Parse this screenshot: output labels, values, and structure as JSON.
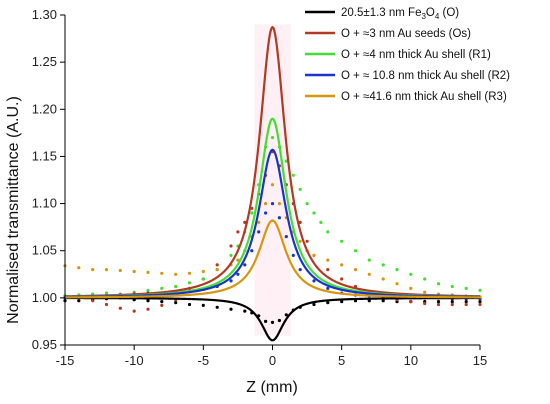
{
  "chart_data": {
    "type": "line",
    "xlabel": "Z (mm)",
    "ylabel": "Normalised transmittance (A.U.)",
    "xlim": [
      -15,
      15
    ],
    "ylim": [
      0.95,
      1.3
    ],
    "xticks": [
      "-15",
      "-10",
      "-5",
      "0",
      "5",
      "10",
      "15"
    ],
    "yticks": [
      "0.95",
      "1.00",
      "1.05",
      "1.10",
      "1.15",
      "1.20",
      "1.25",
      "1.30"
    ],
    "grid": false,
    "legend_position": "top-right",
    "legend": [
      {
        "text_main": "20.5±1.3 nm Fe",
        "sub1": "3",
        "mid": "O",
        "sub2": "4",
        "tail": " (O)",
        "color": "#000000"
      },
      {
        "text_main": "O + ≈3 nm Au seeds (Os)",
        "color": "#b33a22"
      },
      {
        "text_main": "O + ≈4 nm thick Au shell (R1)",
        "color": "#44dd33"
      },
      {
        "text_main": "O + ≈ 10.8 nm thick Au shell (R2)",
        "color": "#1a33cc"
      },
      {
        "text_main": "O + ≈41.6 nm thick Au shell (R3)",
        "color": "#d8960f"
      }
    ],
    "series": [
      {
        "type": "lorentzian",
        "color": "#000000",
        "amplitude": -0.045,
        "width": 1.0,
        "baseline": 1.0
      },
      {
        "type": "lorentzian",
        "color": "#b33a22",
        "amplitude": 0.287,
        "width": 1.15,
        "baseline": 1.0
      },
      {
        "type": "lorentzian",
        "color": "#44dd33",
        "amplitude": 0.19,
        "width": 1.2,
        "baseline": 1.0
      },
      {
        "type": "lorentzian",
        "color": "#1a33cc",
        "amplitude": 0.157,
        "width": 1.2,
        "baseline": 1.0
      },
      {
        "type": "lorentzian",
        "color": "#d8960f",
        "amplitude": 0.082,
        "width": 1.2,
        "baseline": 1.0
      }
    ],
    "scatter_series": [
      {
        "color": "#000000",
        "points": [
          [
            -15,
            0.997
          ],
          [
            -14,
            0.997
          ],
          [
            -13,
            0.998
          ],
          [
            -12,
            0.999
          ],
          [
            -11,
            1.0
          ],
          [
            -10,
            0.998
          ],
          [
            -9,
            0.997
          ],
          [
            -8,
            0.996
          ],
          [
            -7,
            0.995
          ],
          [
            -6,
            0.993
          ],
          [
            -5,
            0.992
          ],
          [
            -4,
            0.99
          ],
          [
            -3,
            0.988
          ],
          [
            -2,
            0.986
          ],
          [
            -1.5,
            0.984
          ],
          [
            -1,
            0.981
          ],
          [
            -0.5,
            0.975
          ],
          [
            0,
            0.974
          ],
          [
            0.5,
            0.976
          ],
          [
            1,
            0.982
          ],
          [
            1.5,
            0.987
          ],
          [
            2,
            0.99
          ],
          [
            3,
            0.993
          ],
          [
            4,
            0.995
          ],
          [
            5,
            0.996
          ],
          [
            6,
            0.997
          ],
          [
            7,
            0.997
          ],
          [
            8,
            0.997
          ],
          [
            9,
            0.996
          ],
          [
            10,
            0.996
          ],
          [
            11,
            0.996
          ],
          [
            12,
            0.996
          ],
          [
            13,
            0.996
          ],
          [
            14,
            0.996
          ],
          [
            15,
            0.996
          ]
        ]
      },
      {
        "color": "#b33a22",
        "points": [
          [
            -15,
            1.002
          ],
          [
            -14,
            1.0
          ],
          [
            -13,
            0.997
          ],
          [
            -12,
            0.993
          ],
          [
            -11,
            0.989
          ],
          [
            -10,
            0.986
          ],
          [
            -9,
            0.988
          ],
          [
            -8,
            0.992
          ],
          [
            -7,
            0.998
          ],
          [
            -6,
            1.01
          ],
          [
            -5,
            1.02
          ],
          [
            -4,
            1.035
          ],
          [
            -3,
            1.055
          ],
          [
            -2.5,
            1.07
          ],
          [
            -2,
            1.08
          ],
          [
            -1.5,
            1.095
          ],
          [
            -1,
            1.11
          ],
          [
            -0.5,
            1.13
          ],
          [
            0,
            1.155
          ],
          [
            0.5,
            1.14
          ],
          [
            1,
            1.12
          ],
          [
            1.5,
            1.1
          ],
          [
            2,
            1.08
          ],
          [
            2.5,
            1.06
          ],
          [
            3,
            1.045
          ],
          [
            4,
            1.03
          ],
          [
            5,
            1.02
          ],
          [
            6,
            1.012
          ],
          [
            7,
            1.006
          ],
          [
            8,
            1.002
          ],
          [
            9,
            0.998
          ],
          [
            10,
            0.996
          ],
          [
            11,
            0.994
          ],
          [
            12,
            0.993
          ],
          [
            13,
            0.993
          ],
          [
            14,
            0.993
          ],
          [
            15,
            0.993
          ]
        ]
      },
      {
        "color": "#44dd33",
        "points": [
          [
            -15,
            1.002
          ],
          [
            -14,
            1.003
          ],
          [
            -13,
            1.004
          ],
          [
            -12,
            1.005
          ],
          [
            -11,
            1.004
          ],
          [
            -10,
            1.006
          ],
          [
            -9,
            1.008
          ],
          [
            -8,
            1.01
          ],
          [
            -7,
            1.012
          ],
          [
            -6,
            1.016
          ],
          [
            -5,
            1.02
          ],
          [
            -4,
            1.03
          ],
          [
            -3,
            1.045
          ],
          [
            -2.5,
            1.055
          ],
          [
            -2,
            1.07
          ],
          [
            -1.5,
            1.09
          ],
          [
            -1,
            1.12
          ],
          [
            -0.5,
            1.16
          ],
          [
            0,
            1.17
          ],
          [
            0.5,
            1.16
          ],
          [
            1,
            1.145
          ],
          [
            1.5,
            1.13
          ],
          [
            2,
            1.115
          ],
          [
            2.5,
            1.1
          ],
          [
            3,
            1.09
          ],
          [
            3.5,
            1.08
          ],
          [
            4,
            1.07
          ],
          [
            5,
            1.06
          ],
          [
            6,
            1.05
          ],
          [
            7,
            1.04
          ],
          [
            8,
            1.035
          ],
          [
            9,
            1.03
          ],
          [
            10,
            1.025
          ],
          [
            11,
            1.02
          ],
          [
            12,
            1.015
          ],
          [
            13,
            1.012
          ],
          [
            14,
            1.01
          ],
          [
            15,
            1.008
          ]
        ]
      },
      {
        "color": "#1a33cc",
        "points": [
          [
            -15,
            1.0
          ],
          [
            -14,
            1.001
          ],
          [
            -13,
            1.0
          ],
          [
            -12,
            1.001
          ],
          [
            -11,
            1.003
          ],
          [
            -10,
            1.004
          ],
          [
            -9,
            1.005
          ],
          [
            -8,
            1.005
          ],
          [
            -7,
            1.006
          ],
          [
            -6,
            1.007
          ],
          [
            -5,
            1.009
          ],
          [
            -4,
            1.012
          ],
          [
            -3,
            1.018
          ],
          [
            -2.5,
            1.025
          ],
          [
            -2,
            1.035
          ],
          [
            -1.5,
            1.05
          ],
          [
            -1,
            1.07
          ],
          [
            -0.5,
            1.09
          ],
          [
            0,
            1.1
          ],
          [
            0.5,
            1.085
          ],
          [
            1,
            1.065
          ],
          [
            1.5,
            1.045
          ],
          [
            2,
            1.03
          ],
          [
            3,
            1.018
          ],
          [
            4,
            1.01
          ],
          [
            5,
            1.005
          ],
          [
            6,
            1.003
          ],
          [
            7,
            1.002
          ],
          [
            8,
            1.002
          ],
          [
            9,
            1.001
          ],
          [
            10,
            1.0
          ],
          [
            11,
            1.0
          ],
          [
            12,
            1.0
          ],
          [
            13,
            0.999
          ],
          [
            14,
            0.999
          ],
          [
            15,
            0.999
          ]
        ]
      },
      {
        "color": "#d8960f",
        "points": [
          [
            -15,
            1.034
          ],
          [
            -14,
            1.032
          ],
          [
            -13,
            1.03
          ],
          [
            -12,
            1.03
          ],
          [
            -11,
            1.029
          ],
          [
            -10,
            1.028
          ],
          [
            -9,
            1.027
          ],
          [
            -8,
            1.026
          ],
          [
            -7,
            1.025
          ],
          [
            -6,
            1.026
          ],
          [
            -5,
            1.028
          ],
          [
            -4,
            1.03
          ],
          [
            -3,
            1.035
          ],
          [
            -2.5,
            1.04
          ],
          [
            -2,
            1.05
          ],
          [
            -1.5,
            1.065
          ],
          [
            -1,
            1.08
          ],
          [
            -0.5,
            1.1
          ],
          [
            0,
            1.12
          ],
          [
            0.5,
            1.1
          ],
          [
            1,
            1.085
          ],
          [
            1.5,
            1.07
          ],
          [
            2,
            1.06
          ],
          [
            2.5,
            1.05
          ],
          [
            3,
            1.045
          ],
          [
            4,
            1.04
          ],
          [
            5,
            1.035
          ],
          [
            6,
            1.03
          ],
          [
            7,
            1.025
          ],
          [
            8,
            1.02
          ],
          [
            9,
            1.015
          ],
          [
            10,
            1.01
          ],
          [
            11,
            1.006
          ],
          [
            12,
            1.004
          ],
          [
            13,
            1.003
          ],
          [
            14,
            1.002
          ],
          [
            15,
            1.001
          ]
        ]
      }
    ]
  }
}
